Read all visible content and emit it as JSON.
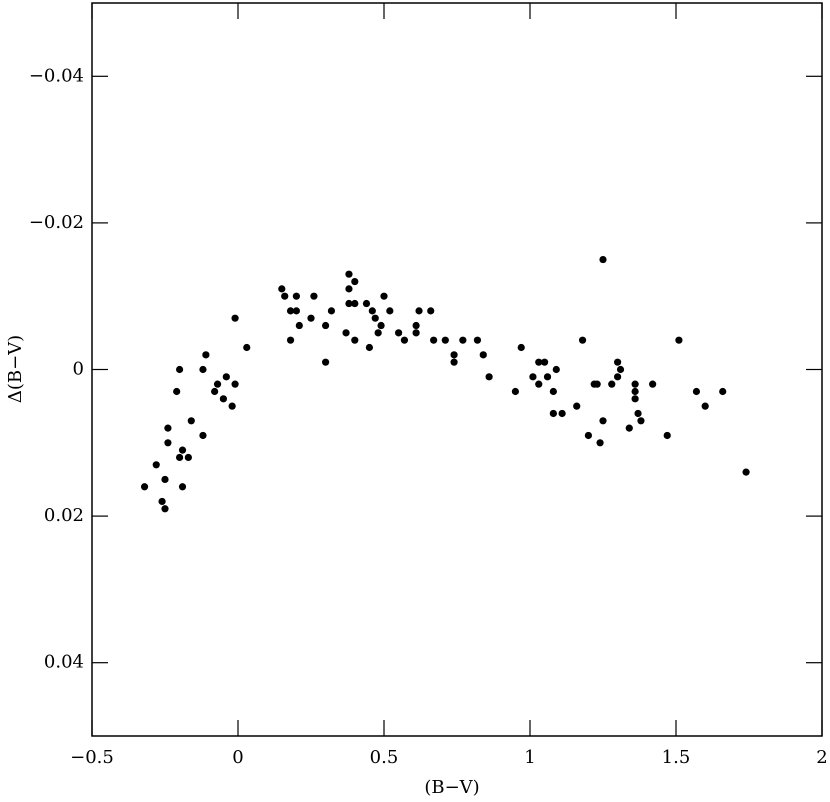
{
  "chart_data": {
    "type": "scatter",
    "x_label": "(B−V)",
    "y_label": "Δ(B−V)",
    "xlim": [
      -0.5,
      2
    ],
    "ylim": [
      0.05,
      -0.05
    ],
    "xticks": [
      {
        "value": -0.5,
        "label": "−0.5"
      },
      0,
      0.5,
      1,
      1.5,
      2
    ],
    "yticks": [
      {
        "value": -0.04,
        "label": "−0.04"
      },
      {
        "value": -0.02,
        "label": "−0.02"
      },
      0,
      0.02,
      0.04
    ],
    "color": "#000000",
    "x": [
      -0.32,
      -0.28,
      -0.25,
      -0.26,
      -0.25,
      -0.24,
      -0.24,
      -0.21,
      -0.2,
      -0.2,
      -0.19,
      -0.19,
      -0.17,
      -0.16,
      -0.12,
      -0.12,
      -0.11,
      -0.08,
      -0.07,
      -0.05,
      -0.04,
      -0.02,
      -0.01,
      -0.01,
      0.03,
      0.15,
      0.16,
      0.18,
      0.18,
      0.2,
      0.2,
      0.21,
      0.25,
      0.26,
      0.3,
      0.3,
      0.32,
      0.37,
      0.38,
      0.38,
      0.38,
      0.4,
      0.4,
      0.4,
      0.44,
      0.45,
      0.46,
      0.47,
      0.48,
      0.49,
      0.5,
      0.52,
      0.55,
      0.57,
      0.61,
      0.61,
      0.62,
      0.66,
      0.67,
      0.71,
      0.74,
      0.74,
      0.77,
      0.82,
      0.84,
      0.86,
      0.95,
      0.97,
      1.01,
      1.03,
      1.03,
      1.05,
      1.06,
      1.08,
      1.09,
      1.08,
      1.11,
      1.16,
      1.18,
      1.2,
      1.22,
      1.23,
      1.24,
      1.25,
      1.25,
      1.28,
      1.3,
      1.3,
      1.31,
      1.34,
      1.36,
      1.36,
      1.36,
      1.37,
      1.38,
      1.42,
      1.47,
      1.51,
      1.57,
      1.6,
      1.66,
      1.74
    ],
    "values": [
      0.016,
      0.013,
      0.015,
      0.018,
      0.019,
      0.008,
      0.01,
      0.003,
      0,
      0.012,
      0.011,
      0.016,
      0.012,
      0.007,
      0,
      0.009,
      -0.002,
      0.003,
      0.002,
      0.004,
      0.001,
      0.005,
      0.002,
      -0.007,
      -0.003,
      -0.011,
      -0.01,
      -0.004,
      -0.008,
      -0.01,
      -0.008,
      -0.006,
      -0.007,
      -0.01,
      -0.006,
      -0.001,
      -0.008,
      -0.005,
      -0.013,
      -0.011,
      -0.009,
      -0.009,
      -0.012,
      -0.004,
      -0.009,
      -0.003,
      -0.008,
      -0.007,
      -0.005,
      -0.006,
      -0.01,
      -0.008,
      -0.005,
      -0.004,
      -0.006,
      -0.005,
      -0.008,
      -0.008,
      -0.004,
      -0.004,
      -0.002,
      -0.001,
      -0.004,
      -0.004,
      -0.002,
      0.001,
      0.003,
      -0.003,
      0.001,
      -0.001,
      0.002,
      -0.001,
      0.001,
      0.003,
      0,
      0.006,
      0.006,
      0.005,
      -0.004,
      0.009,
      0.002,
      0.002,
      0.01,
      -0.015,
      0.007,
      0.002,
      -0.001,
      0.001,
      0,
      0.008,
      0.002,
      0.003,
      0.004,
      0.006,
      0.007,
      0.002,
      0.009,
      -0.004,
      0.003,
      0.005,
      0.003,
      0.014
    ]
  }
}
